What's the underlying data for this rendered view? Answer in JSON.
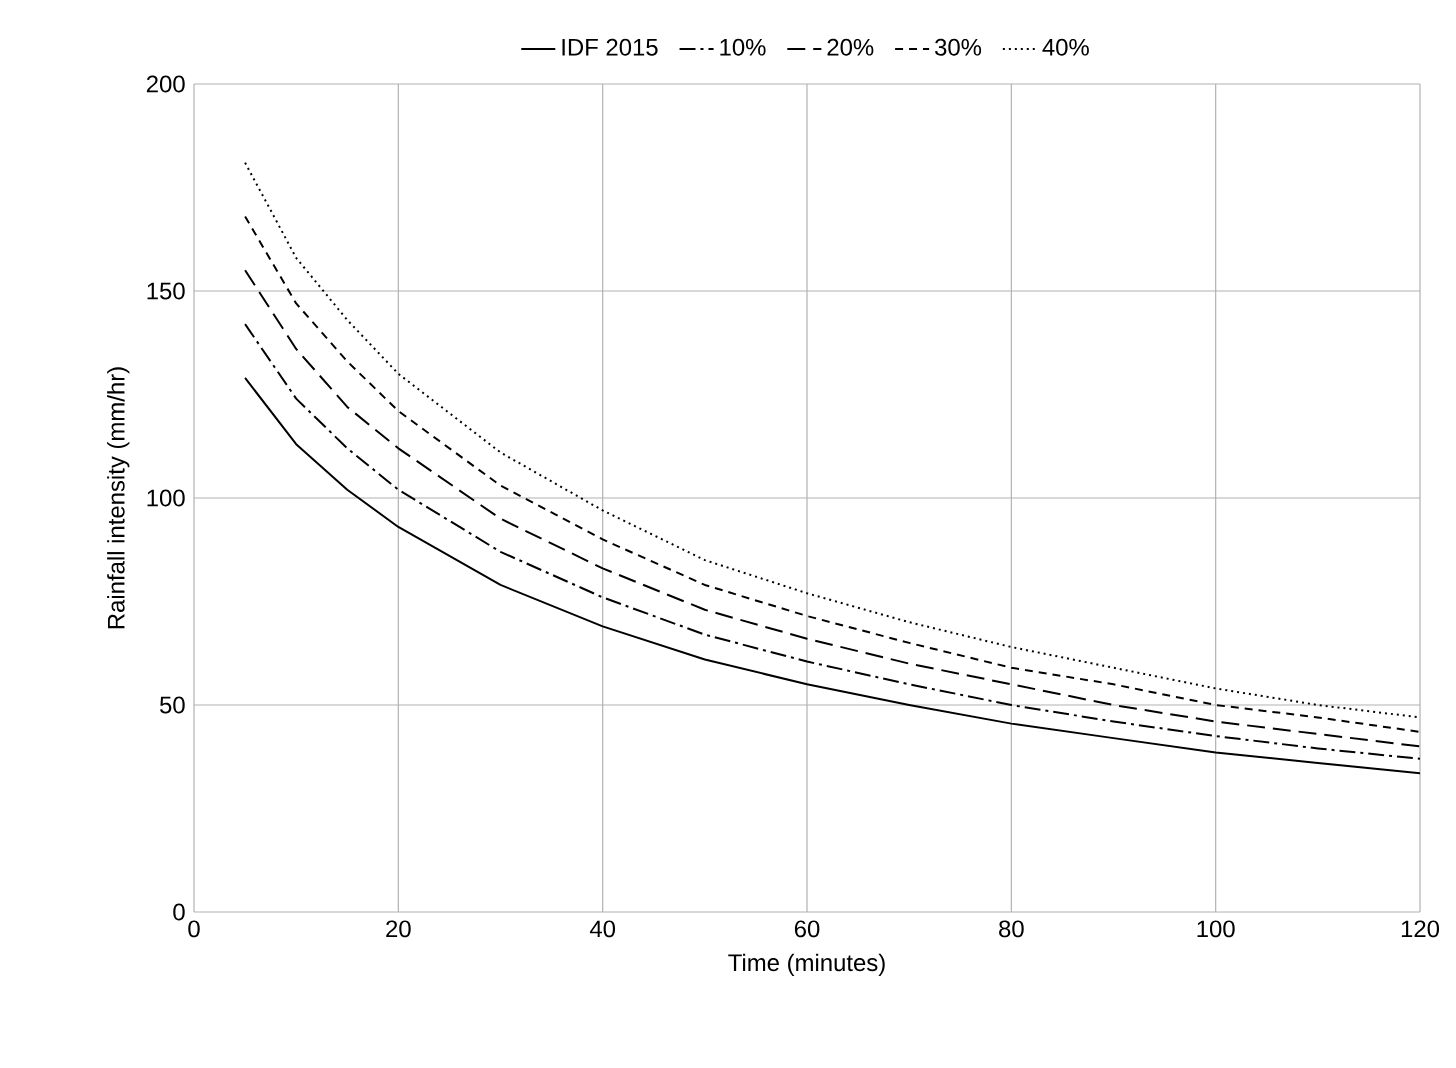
{
  "chart_data": {
    "type": "line",
    "xlabel": "Time (minutes)",
    "ylabel": "Rainfall intensity (mm/hr)",
    "x": [
      5,
      10,
      15,
      20,
      30,
      40,
      50,
      60,
      70,
      80,
      90,
      100,
      110,
      120
    ],
    "xlim": [
      0,
      120
    ],
    "xticks": [
      0,
      20,
      40,
      60,
      80,
      100,
      120
    ],
    "ylim": [
      0,
      200
    ],
    "yticks": [
      0,
      50,
      100,
      150,
      200
    ],
    "grid": true,
    "legend": "top",
    "series": [
      {
        "name": "IDF 2015",
        "color": "#000000",
        "line_style": "solid",
        "values": [
          129,
          113,
          102,
          93,
          79,
          69,
          61,
          55,
          50,
          45.5,
          42,
          38.5,
          36,
          33.5
        ]
      },
      {
        "name": "10%",
        "color": "#000000",
        "line_style": "dashdot",
        "values": [
          142,
          124,
          112,
          102,
          87,
          76,
          67,
          60.5,
          55,
          50,
          46,
          42.5,
          39.5,
          37
        ]
      },
      {
        "name": "20%",
        "color": "#000000",
        "line_style": "longdashed",
        "values": [
          155,
          136,
          122,
          112,
          95,
          83,
          73,
          66,
          60,
          55,
          50,
          46,
          43,
          40
        ]
      },
      {
        "name": "30%",
        "color": "#000000",
        "line_style": "dashed",
        "values": [
          168,
          147,
          133,
          121,
          103,
          90,
          79,
          71.5,
          65,
          59,
          55,
          50,
          47,
          43.5
        ]
      },
      {
        "name": "40%",
        "color": "#000000",
        "line_style": "dotted",
        "values": [
          181,
          158,
          143,
          130,
          111,
          97,
          85,
          77,
          70,
          64,
          59,
          54,
          50,
          47
        ]
      }
    ]
  }
}
